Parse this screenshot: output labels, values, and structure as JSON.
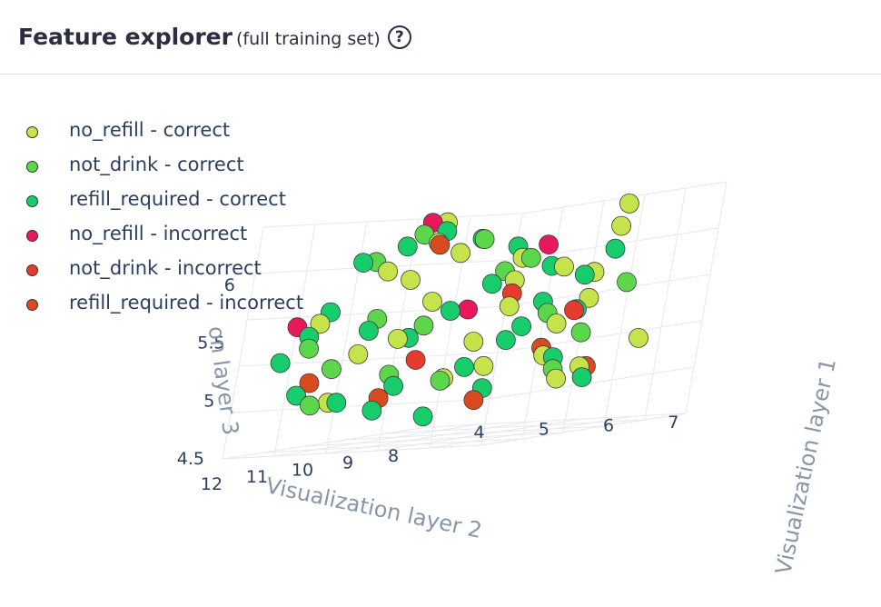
{
  "header": {
    "title": "Feature explorer",
    "subtitle": "(full training set)",
    "help_icon": "question-circle-icon"
  },
  "chart_data": {
    "type": "scatter3d",
    "xlabel": "Visualization layer 1",
    "ylabel": "Visualization layer 2",
    "zlabel": "Visualization layer 3",
    "xlim": [
      3.5,
      7.5
    ],
    "ylim": [
      7.5,
      12
    ],
    "zlim": [
      4.5,
      6.5
    ],
    "x_ticks": [
      "4",
      "5",
      "6",
      "7"
    ],
    "y_ticks": [
      "8",
      "9",
      "10",
      "11",
      "12"
    ],
    "z_ticks": [
      "4.5",
      "5",
      "5.5",
      "6"
    ],
    "z_title_visible_text": "on layer 3",
    "legend_position": "top-left",
    "series": [
      {
        "name": "no_refill - correct",
        "color": "#c5e34a",
        "points": [
          [
            6.8,
            8.6,
            6.4
          ],
          [
            6.6,
            8.4,
            6.2
          ],
          [
            5.4,
            10.6,
            6.4
          ],
          [
            4.7,
            10.2,
            5.9
          ],
          [
            5.5,
            9.0,
            5.8
          ],
          [
            4.1,
            11.2,
            5.6
          ],
          [
            6.2,
            8.9,
            5.4
          ],
          [
            5.6,
            8.2,
            5.1
          ],
          [
            5.0,
            9.5,
            5.0
          ],
          [
            6.1,
            8.1,
            5.8
          ],
          [
            4.5,
            10.8,
            5.3
          ],
          [
            5.9,
            9.6,
            5.6
          ],
          [
            6.4,
            8.5,
            5.0
          ],
          [
            5.2,
            9.9,
            6.1
          ],
          [
            4.8,
            10.4,
            5.4
          ],
          [
            6.9,
            8.0,
            5.2
          ],
          [
            5.7,
            9.2,
            6.0
          ],
          [
            4.3,
            11.0,
            4.9
          ],
          [
            6.5,
            8.7,
            5.6
          ],
          [
            5.3,
            9.4,
            5.3
          ],
          [
            4.9,
            10.0,
            6.2
          ],
          [
            6.0,
            8.4,
            4.9
          ],
          [
            5.8,
            9.8,
            5.1
          ],
          [
            4.6,
            10.6,
            6.0
          ],
          [
            6.3,
            9.1,
            5.9
          ],
          [
            5.1,
            10.2,
            5.7
          ]
        ]
      },
      {
        "name": "not_drink - correct",
        "color": "#5cd64a",
        "points": [
          [
            4.2,
            11.5,
            5.4
          ],
          [
            4.4,
            11.2,
            5.2
          ],
          [
            5.0,
            10.5,
            6.3
          ],
          [
            5.6,
            9.4,
            5.9
          ],
          [
            4.7,
            10.8,
            5.6
          ],
          [
            6.1,
            9.0,
            5.5
          ],
          [
            4.3,
            11.4,
            4.9
          ],
          [
            5.3,
            10.0,
            5.0
          ],
          [
            6.4,
            8.6,
            5.3
          ],
          [
            4.6,
            10.9,
            6.1
          ],
          [
            5.9,
            9.3,
            6.0
          ],
          [
            5.1,
            10.3,
            5.5
          ],
          [
            6.7,
            8.2,
            5.7
          ],
          [
            4.9,
            10.6,
            5.1
          ],
          [
            5.4,
            9.7,
            6.2
          ],
          [
            6.2,
            8.8,
            5.0
          ]
        ]
      },
      {
        "name": "refill_required - correct",
        "color": "#17cc6b",
        "points": [
          [
            4.0,
            11.8,
            5.3
          ],
          [
            4.2,
            11.6,
            5.0
          ],
          [
            4.5,
            11.1,
            4.9
          ],
          [
            4.8,
            10.7,
            4.8
          ],
          [
            5.2,
            10.1,
            4.7
          ],
          [
            5.5,
            9.8,
            5.1
          ],
          [
            5.8,
            9.4,
            5.3
          ],
          [
            6.0,
            9.0,
            5.6
          ],
          [
            6.3,
            8.6,
            5.8
          ],
          [
            6.5,
            8.3,
            6.0
          ],
          [
            4.4,
            10.9,
            6.1
          ],
          [
            4.7,
            10.4,
            6.2
          ],
          [
            5.0,
            10.0,
            6.3
          ],
          [
            5.3,
            9.6,
            6.2
          ],
          [
            5.6,
            9.2,
            6.1
          ],
          [
            5.9,
            8.8,
            5.9
          ],
          [
            6.2,
            8.5,
            5.5
          ],
          [
            4.3,
            11.3,
            5.7
          ],
          [
            4.6,
            10.8,
            5.5
          ],
          [
            4.9,
            10.3,
            5.4
          ],
          [
            5.2,
            9.9,
            5.6
          ],
          [
            5.5,
            9.5,
            5.8
          ],
          [
            5.8,
            9.1,
            5.4
          ],
          [
            6.1,
            8.7,
            5.1
          ],
          [
            6.4,
            8.4,
            4.9
          ],
          [
            4.1,
            11.4,
            5.5
          ],
          [
            5.0,
            10.6,
            5.0
          ],
          [
            5.7,
            9.6,
            4.9
          ]
        ]
      },
      {
        "name": "no_refill - incorrect",
        "color": "#e8195a",
        "points": [
          [
            5.1,
            10.5,
            6.4
          ],
          [
            4.1,
            11.7,
            5.6
          ],
          [
            5.4,
            9.8,
            5.6
          ],
          [
            6.0,
            9.1,
            6.1
          ]
        ]
      },
      {
        "name": "not_drink - incorrect",
        "color": "#e63c2e",
        "points": [
          [
            5.7,
            9.3,
            5.7
          ],
          [
            5.0,
            10.2,
            5.2
          ],
          [
            6.3,
            8.7,
            5.5
          ]
        ]
      },
      {
        "name": "refill_required - incorrect",
        "color": "#d94a1e",
        "points": [
          [
            5.2,
            10.4,
            6.2
          ],
          [
            4.3,
            11.5,
            5.1
          ],
          [
            4.8,
            10.6,
            4.9
          ],
          [
            5.6,
            9.6,
            4.8
          ],
          [
            6.1,
            9.0,
            5.2
          ],
          [
            6.5,
            8.5,
            5.0
          ]
        ]
      }
    ]
  }
}
